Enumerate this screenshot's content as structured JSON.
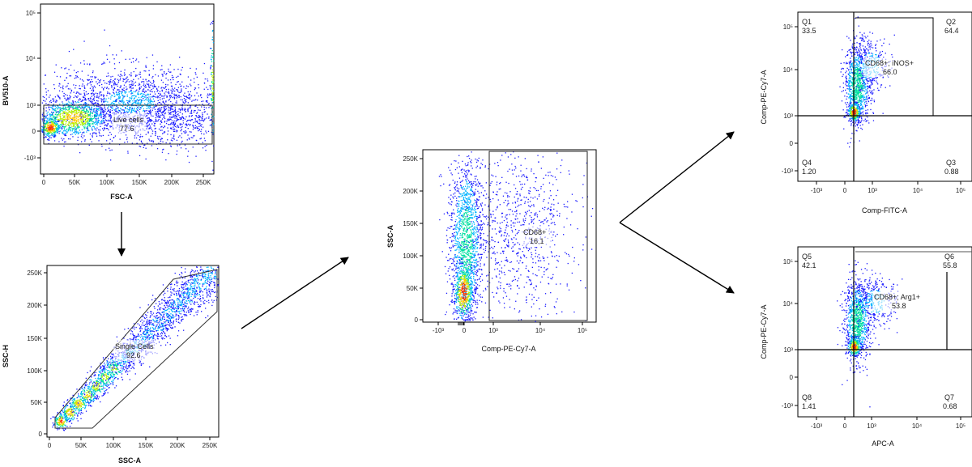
{
  "chart_data": [
    {
      "id": "p1",
      "type": "scatter",
      "xlabel": "FSC-A",
      "ylabel": "BV510-A",
      "xticks": [
        "0",
        "50K",
        "100K",
        "150K",
        "200K",
        "250K"
      ],
      "yticks": [
        "-10³",
        "0",
        "10³",
        "10⁴",
        "10⁵"
      ],
      "gates": [
        {
          "name": "Live cells",
          "value": "77.6"
        }
      ]
    },
    {
      "id": "p2",
      "type": "scatter",
      "xlabel": "SSC-A",
      "ylabel": "SSC-H",
      "xticks": [
        "0",
        "50K",
        "100K",
        "150K",
        "200K",
        "250K"
      ],
      "yticks": [
        "0",
        "50K",
        "100K",
        "150K",
        "200K",
        "250K"
      ],
      "gates": [
        {
          "name": "Single Cells",
          "value": "92.6"
        }
      ]
    },
    {
      "id": "p3",
      "type": "scatter",
      "xlabel": "Comp-PE-Cy7-A",
      "ylabel": "SSC-A",
      "xticks": [
        "-10³",
        "0",
        "10³",
        "10⁴",
        "10⁵"
      ],
      "yticks": [
        "0",
        "50K",
        "100K",
        "150K",
        "200K",
        "250K"
      ],
      "gates": [
        {
          "name": "CD68+",
          "value": "16.1"
        }
      ]
    },
    {
      "id": "p4",
      "type": "scatter",
      "xlabel": "Comp-FITC-A",
      "ylabel": "Comp-PE-Cy7-A",
      "xticks": [
        "-10³",
        "0",
        "10³",
        "10⁴",
        "10⁵"
      ],
      "yticks": [
        "-10³",
        "0",
        "10³",
        "10⁴",
        "10⁵"
      ],
      "quadrants": [
        {
          "name": "Q1",
          "value": "33.5"
        },
        {
          "name": "Q2",
          "value": "64.4"
        },
        {
          "name": "Q3",
          "value": "0.88"
        },
        {
          "name": "Q4",
          "value": "1.20"
        }
      ],
      "gates": [
        {
          "name": "CD68+; iNOS+",
          "value": "66.0"
        }
      ]
    },
    {
      "id": "p5",
      "type": "scatter",
      "xlabel": "APC-A",
      "ylabel": "Comp-PE-Cy7-A",
      "xticks": [
        "-10³",
        "0",
        "10³",
        "10⁴",
        "10⁵"
      ],
      "yticks": [
        "-10³",
        "0",
        "10³",
        "10⁴",
        "10⁵"
      ],
      "quadrants": [
        {
          "name": "Q5",
          "value": "42.1"
        },
        {
          "name": "Q6",
          "value": "55.8"
        },
        {
          "name": "Q7",
          "value": "0.68"
        },
        {
          "name": "Q8",
          "value": "1.41"
        }
      ],
      "gates": [
        {
          "name": "CD68+; Arg1+",
          "value": "53.8"
        }
      ]
    }
  ],
  "colors": {
    "density": [
      "#1a1aff",
      "#00b4ff",
      "#00e0a0",
      "#b4f000",
      "#ffcc00",
      "#ff3300"
    ],
    "gate": "#222222"
  }
}
